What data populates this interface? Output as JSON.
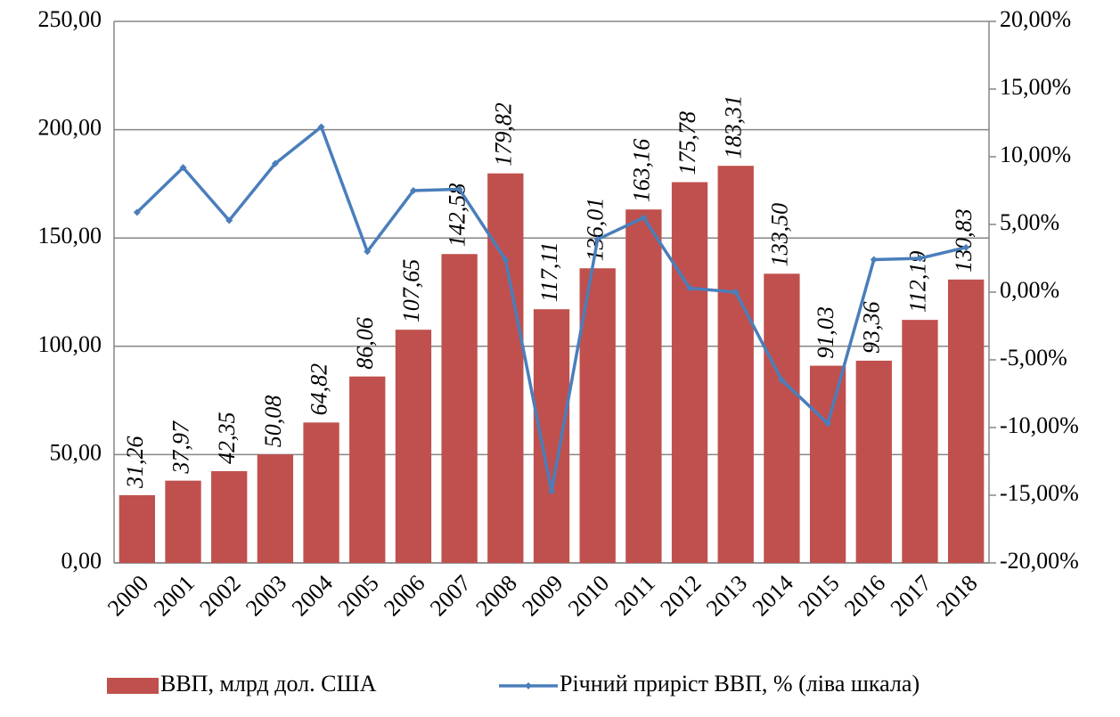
{
  "chart_data": {
    "type": "bar_line",
    "categories": [
      "2000",
      "2001",
      "2002",
      "2003",
      "2004",
      "2005",
      "2006",
      "2007",
      "2008",
      "2009",
      "2010",
      "2011",
      "2012",
      "2013",
      "2014",
      "2015",
      "2016",
      "2017",
      "2018"
    ],
    "series": [
      {
        "name": "ВВП, млрд дол. США",
        "type": "bar",
        "color": "#c0504d",
        "values": [
          31.26,
          37.97,
          42.35,
          50.08,
          64.82,
          86.06,
          107.65,
          142.58,
          179.82,
          117.11,
          136.01,
          163.16,
          175.78,
          183.31,
          133.5,
          91.03,
          93.36,
          112.19,
          130.83
        ],
        "value_labels": [
          "31,26",
          "37,97",
          "42,35",
          "50,08",
          "64,82",
          "86,06",
          "107,65",
          "142,58",
          "179,82",
          "117,11",
          "136,01",
          "163,16",
          "175,78",
          "183,31",
          "133,50",
          "91,03",
          "93,36",
          "112,19",
          "130,83"
        ]
      },
      {
        "name": "Річний приріст ВВП, % (ліва шкала)",
        "type": "line",
        "axis": "y2",
        "color": "#4a7ebb",
        "values": [
          5.9,
          9.2,
          5.3,
          9.5,
          12.2,
          3.0,
          7.5,
          7.6,
          2.4,
          -14.7,
          3.9,
          5.5,
          0.3,
          0.0,
          -6.5,
          -9.7,
          2.4,
          2.5,
          3.3
        ]
      }
    ],
    "ylim": [
      0,
      250
    ],
    "yticks": [
      {
        "value": 0,
        "label": "0,00"
      },
      {
        "value": 50,
        "label": "50,00"
      },
      {
        "value": 100,
        "label": "100,00"
      },
      {
        "value": 150,
        "label": "150,00"
      },
      {
        "value": 200,
        "label": "200,00"
      },
      {
        "value": 250,
        "label": "250,00"
      }
    ],
    "y2lim": [
      -20,
      20
    ],
    "y2ticks": [
      {
        "value": -20,
        "label": "-20,00%"
      },
      {
        "value": -15,
        "label": "-15,00%"
      },
      {
        "value": -10,
        "label": "-10,00%"
      },
      {
        "value": -5,
        "label": "-5,00%"
      },
      {
        "value": 0,
        "label": "0,00%"
      },
      {
        "value": 5,
        "label": "5,00%"
      },
      {
        "value": 10,
        "label": "10,00%"
      },
      {
        "value": 15,
        "label": "15,00%"
      },
      {
        "value": 20,
        "label": "20,00%"
      }
    ],
    "grid": true,
    "legend": "bottom"
  }
}
